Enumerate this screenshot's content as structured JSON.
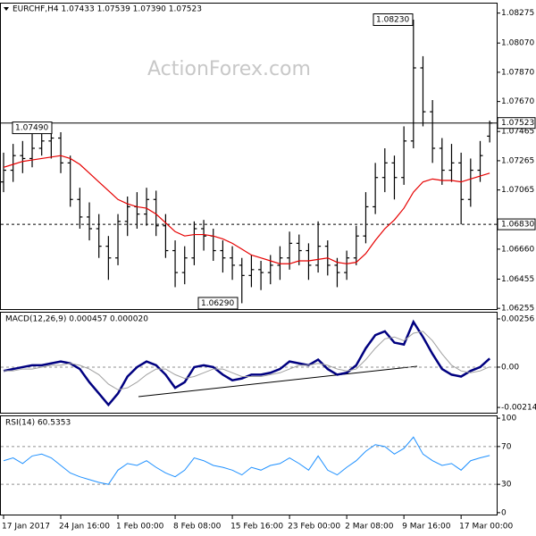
{
  "chart_data": [
    {
      "type": "ohlc",
      "title": "EURCHF,H4  1.07433 1.07539 1.07390 1.07523",
      "watermark": "ActionForex.com",
      "ylim": [
        1.0625,
        1.0834
      ],
      "yticks": [
        1.08275,
        {
          "value": 1.0807,
          "label": "1.08070"
        },
        {
          "value": 1.0787,
          "label": "1.07870"
        },
        {
          "value": 1.0767,
          "label": "1.07670"
        },
        1.07465,
        1.07265,
        1.07065,
        {
          "value": 1.0666,
          "label": "1.06660"
        },
        1.06455,
        1.06255
      ],
      "hlines": [
        {
          "value": 1.07523,
          "label": "1.07523",
          "style": "solid"
        },
        {
          "value": 1.0683,
          "label": "1.06830",
          "style": "dashed"
        }
      ],
      "annotations": [
        {
          "value": 1.0749,
          "label": "1.07490"
        },
        {
          "value": 1.0823,
          "label": "1.08230"
        },
        {
          "value": 1.0629,
          "label": "1.06290"
        }
      ],
      "series": [
        {
          "color": "#000000",
          "open": [
            1.0712,
            1.072,
            1.073,
            1.0728,
            1.0735,
            1.074,
            1.0742,
            1.0725,
            1.07,
            1.0688,
            1.068,
            1.0668,
            1.066,
            1.0685,
            1.0695,
            1.069,
            1.07,
            1.0682,
            1.0665,
            1.065,
            1.066,
            1.068,
            1.0675,
            1.0665,
            1.066,
            1.0655,
            1.0648,
            1.0652,
            1.065,
            1.0655,
            1.066,
            1.067,
            1.0665,
            1.0655,
            1.0668,
            1.0655,
            1.065,
            1.066,
            1.0675,
            1.0695,
            1.0715,
            1.0725,
            1.0715,
            1.074,
            1.079,
            1.076,
            1.0735,
            1.072,
            1.0725,
            1.07,
            1.072,
            1.07433
          ],
          "high": [
            1.0732,
            1.0738,
            1.074,
            1.0745,
            1.075,
            1.0749,
            1.0746,
            1.073,
            1.0708,
            1.0698,
            1.069,
            1.0675,
            1.069,
            1.0702,
            1.0705,
            1.0708,
            1.0706,
            1.069,
            1.0672,
            1.0668,
            1.0685,
            1.0686,
            1.068,
            1.0672,
            1.0668,
            1.066,
            1.0662,
            1.0658,
            1.0662,
            1.0668,
            1.0678,
            1.0676,
            1.067,
            1.0685,
            1.0672,
            1.066,
            1.0665,
            1.0682,
            1.0705,
            1.0725,
            1.0735,
            1.073,
            1.075,
            1.0823,
            1.0798,
            1.0768,
            1.0742,
            1.0738,
            1.0732,
            1.0728,
            1.074,
            1.07539
          ],
          "low": [
            1.0705,
            1.0712,
            1.0718,
            1.0722,
            1.073,
            1.0728,
            1.0718,
            1.0695,
            1.068,
            1.0672,
            1.066,
            1.0645,
            1.0655,
            1.0675,
            1.068,
            1.0682,
            1.0675,
            1.066,
            1.064,
            1.0642,
            1.0655,
            1.0665,
            1.0658,
            1.065,
            1.0645,
            1.0629,
            1.064,
            1.0638,
            1.0642,
            1.0645,
            1.0652,
            1.0655,
            1.0645,
            1.065,
            1.0648,
            1.064,
            1.0645,
            1.0655,
            1.067,
            1.069,
            1.0705,
            1.07,
            1.071,
            1.0735,
            1.075,
            1.0725,
            1.071,
            1.0712,
            1.0683,
            1.0695,
            1.0712,
            1.0739
          ],
          "close": [
            1.072,
            1.073,
            1.0728,
            1.0735,
            1.074,
            1.0742,
            1.0725,
            1.07,
            1.0688,
            1.068,
            1.0668,
            1.066,
            1.0685,
            1.0695,
            1.069,
            1.07,
            1.0682,
            1.0665,
            1.065,
            1.066,
            1.068,
            1.0675,
            1.0665,
            1.066,
            1.0655,
            1.0648,
            1.0652,
            1.065,
            1.0655,
            1.066,
            1.067,
            1.0665,
            1.0655,
            1.0668,
            1.0655,
            1.065,
            1.066,
            1.0675,
            1.0695,
            1.0715,
            1.0725,
            1.0715,
            1.074,
            1.079,
            1.076,
            1.0735,
            1.072,
            1.0725,
            1.07,
            1.072,
            1.073,
            1.07523
          ]
        },
        {
          "color": "#e60000",
          "values": [
            1.0722,
            1.0724,
            1.0726,
            1.0727,
            1.0728,
            1.0729,
            1.073,
            1.0728,
            1.0724,
            1.0718,
            1.0712,
            1.0706,
            1.07,
            1.0697,
            1.0695,
            1.0694,
            1.069,
            1.0684,
            1.0678,
            1.0675,
            1.0676,
            1.0676,
            1.0675,
            1.0673,
            1.067,
            1.0666,
            1.0662,
            1.066,
            1.0658,
            1.0656,
            1.0656,
            1.0658,
            1.0658,
            1.0659,
            1.066,
            1.0657,
            1.0656,
            1.0657,
            1.0663,
            1.0672,
            1.068,
            1.0686,
            1.0694,
            1.0705,
            1.0712,
            1.0714,
            1.0713,
            1.0713,
            1.0712,
            1.0714,
            1.0716,
            1.0718
          ]
        }
      ]
    },
    {
      "type": "line",
      "title": "MACD(12,26,9) 0.000457 0.000020",
      "ylim": [
        -0.00242,
        0.00289
      ],
      "yticks": [
        0.00256,
        {
          "value": 0,
          "label": "0.00"
        },
        -0.00214
      ],
      "levels": [
        0
      ],
      "series": [
        {
          "color": "#000080",
          "width": 2.5,
          "values": [
            -0.0002,
            -0.0001,
            0.0,
            0.0001,
            0.0001,
            0.0002,
            0.0003,
            0.0002,
            -0.0001,
            -0.0008,
            -0.0014,
            -0.002,
            -0.0014,
            -0.0005,
            0.0,
            0.0003,
            0.0001,
            -0.0004,
            -0.0011,
            -0.0008,
            0.0,
            0.0001,
            0.0,
            -0.0004,
            -0.0007,
            -0.0006,
            -0.0004,
            -0.0004,
            -0.0003,
            -0.0001,
            0.0003,
            0.0002,
            0.0001,
            0.0004,
            -0.0001,
            -0.0004,
            -0.0003,
            0.0001,
            0.001,
            0.0017,
            0.0019,
            0.0013,
            0.0012,
            0.0024,
            0.0016,
            0.0007,
            -0.0001,
            -0.0004,
            -0.0005,
            -0.0002,
            0.0,
            0.000457
          ]
        },
        {
          "color": "#a0a0a0",
          "width": 1,
          "values": [
            -0.0002,
            -0.0002,
            -0.0001,
            -0.0001,
            0.0,
            0.0001,
            0.0001,
            0.0002,
            0.0001,
            -0.0001,
            -0.0004,
            -0.0009,
            -0.0012,
            -0.0011,
            -0.0008,
            -0.0004,
            -0.0001,
            -0.0001,
            -0.0004,
            -0.0006,
            -0.0005,
            -0.0003,
            -0.0001,
            -0.0001,
            -0.0003,
            -0.0005,
            -0.0005,
            -0.0005,
            -0.0004,
            -0.0003,
            -0.0001,
            0.0001,
            0.0001,
            0.0002,
            0.0001,
            -0.0001,
            -0.0002,
            -0.0001,
            0.0004,
            0.001,
            0.0015,
            0.0016,
            0.0014,
            0.0018,
            0.0019,
            0.0014,
            0.0007,
            0.0001,
            -0.0002,
            -0.0003,
            -0.0002,
            2e-05
          ]
        }
      ]
    },
    {
      "type": "line",
      "title": "RSI(14) 60.5353",
      "ylim": [
        -2,
        102
      ],
      "yticks": [
        100,
        70,
        30,
        0
      ],
      "levels": [
        70,
        30
      ],
      "categories": [
        "17 Jan 2017",
        null,
        null,
        null,
        null,
        null,
        "24 Jan 16:00",
        null,
        null,
        null,
        null,
        null,
        "1 Feb 00:00",
        null,
        null,
        null,
        null,
        null,
        "8 Feb 08:00",
        null,
        null,
        null,
        null,
        null,
        "15 Feb 16:00",
        null,
        null,
        null,
        null,
        null,
        "23 Feb 00:00",
        null,
        null,
        null,
        null,
        null,
        "2 Mar 08:00",
        null,
        null,
        null,
        null,
        null,
        "9 Mar 16:00",
        null,
        null,
        null,
        null,
        null,
        "17 Mar 00:00",
        null,
        null,
        null
      ],
      "series": [
        {
          "color": "#1e90ff",
          "width": 1,
          "values": [
            55,
            58,
            52,
            60,
            62,
            58,
            50,
            42,
            38,
            35,
            32,
            30,
            45,
            52,
            50,
            55,
            48,
            42,
            38,
            45,
            58,
            55,
            50,
            48,
            45,
            40,
            48,
            45,
            50,
            52,
            58,
            52,
            45,
            60,
            45,
            40,
            48,
            55,
            65,
            72,
            70,
            62,
            68,
            80,
            62,
            55,
            50,
            52,
            45,
            55,
            58,
            60.5353
          ]
        }
      ]
    }
  ]
}
